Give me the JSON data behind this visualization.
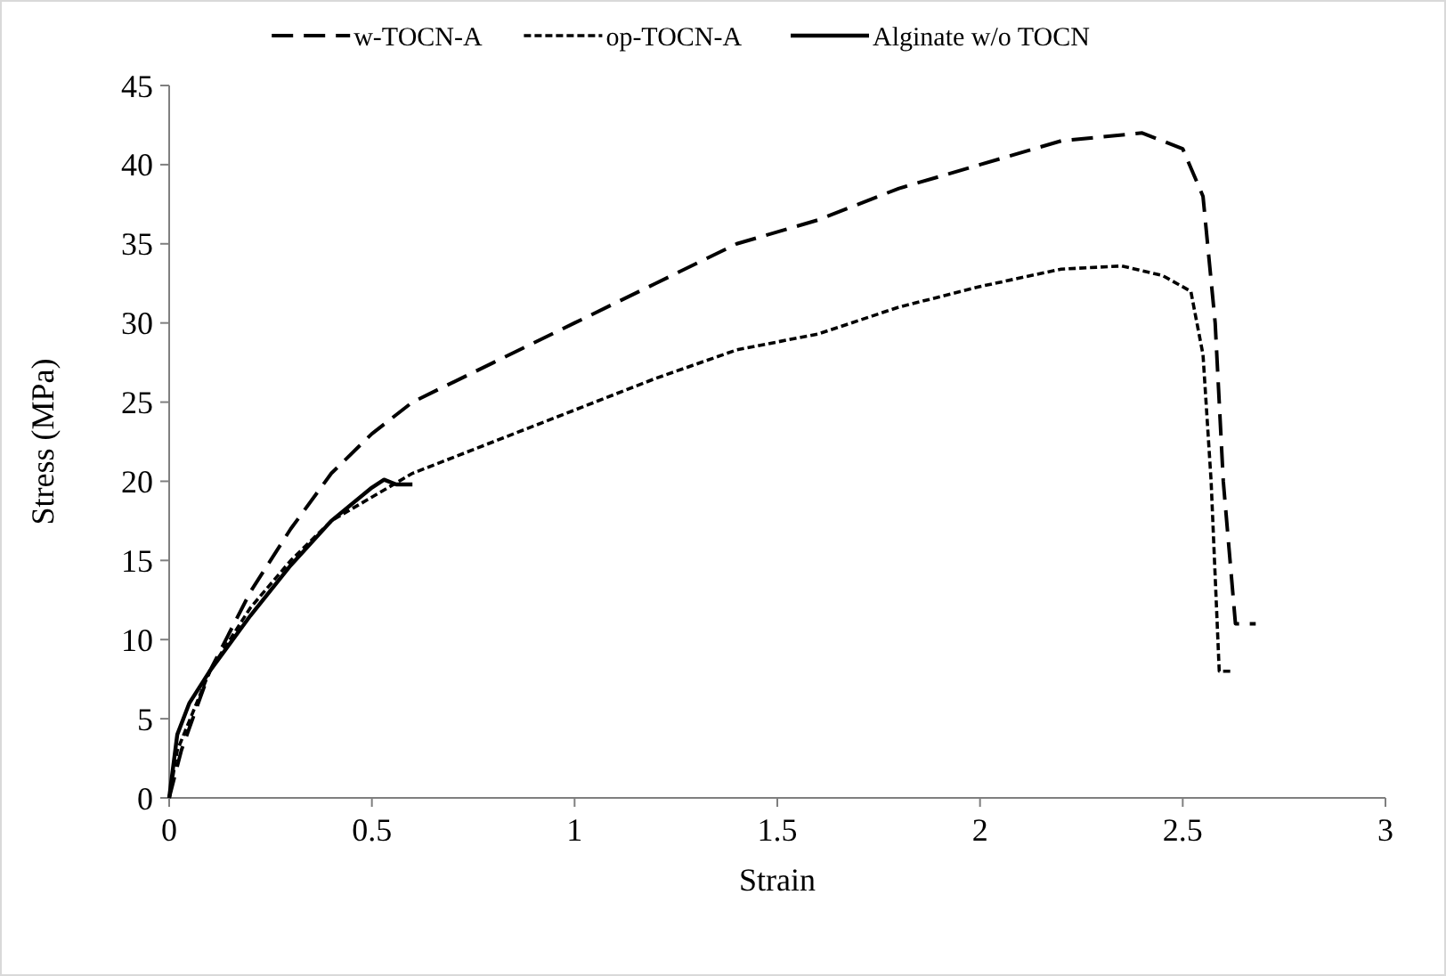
{
  "chart_data": {
    "type": "line",
    "xlabel": "Strain",
    "ylabel": "Stress (MPa)",
    "xlim": [
      0,
      3
    ],
    "xticks": [
      0,
      0.5,
      1,
      1.5,
      2,
      2.5,
      3
    ],
    "ylim": [
      0,
      45
    ],
    "yticks": [
      0,
      5,
      10,
      15,
      20,
      25,
      30,
      35,
      40,
      45
    ],
    "grid": false,
    "legend": "top",
    "series": [
      {
        "name": "w-TOCN-A",
        "color": "#000000",
        "line_style": "dashed",
        "x": [
          0,
          0.03,
          0.1,
          0.2,
          0.3,
          0.4,
          0.5,
          0.6,
          0.8,
          1.0,
          1.2,
          1.4,
          1.6,
          1.8,
          2.0,
          2.2,
          2.4,
          2.5,
          2.55,
          2.58,
          2.6,
          2.63,
          2.68
        ],
        "values": [
          0,
          3,
          8,
          13,
          17,
          20.5,
          23,
          25,
          27.5,
          30,
          32.5,
          35,
          36.5,
          38.5,
          40,
          41.5,
          42,
          41,
          38,
          30,
          20,
          11,
          11
        ]
      },
      {
        "name": "op-TOCN-A",
        "color": "#000000",
        "line_style": "dotted",
        "x": [
          0,
          0.02,
          0.1,
          0.2,
          0.3,
          0.4,
          0.5,
          0.6,
          0.8,
          1.0,
          1.2,
          1.4,
          1.6,
          1.8,
          2.0,
          2.2,
          2.35,
          2.45,
          2.52,
          2.55,
          2.57,
          2.59,
          2.62
        ],
        "values": [
          0,
          3,
          8,
          12,
          15,
          17.5,
          19,
          20.5,
          22.5,
          24.5,
          26.5,
          28.3,
          29.3,
          31,
          32.3,
          33.4,
          33.6,
          33,
          32,
          28,
          20,
          8,
          8
        ]
      },
      {
        "name": "Alginate w/o TOCN",
        "color": "#000000",
        "line_style": "solid",
        "x": [
          0,
          0.02,
          0.05,
          0.1,
          0.2,
          0.3,
          0.4,
          0.5,
          0.53,
          0.56,
          0.6
        ],
        "values": [
          0,
          4,
          6,
          8,
          11.5,
          14.7,
          17.5,
          19.6,
          20.1,
          19.8,
          19.8
        ]
      }
    ]
  }
}
